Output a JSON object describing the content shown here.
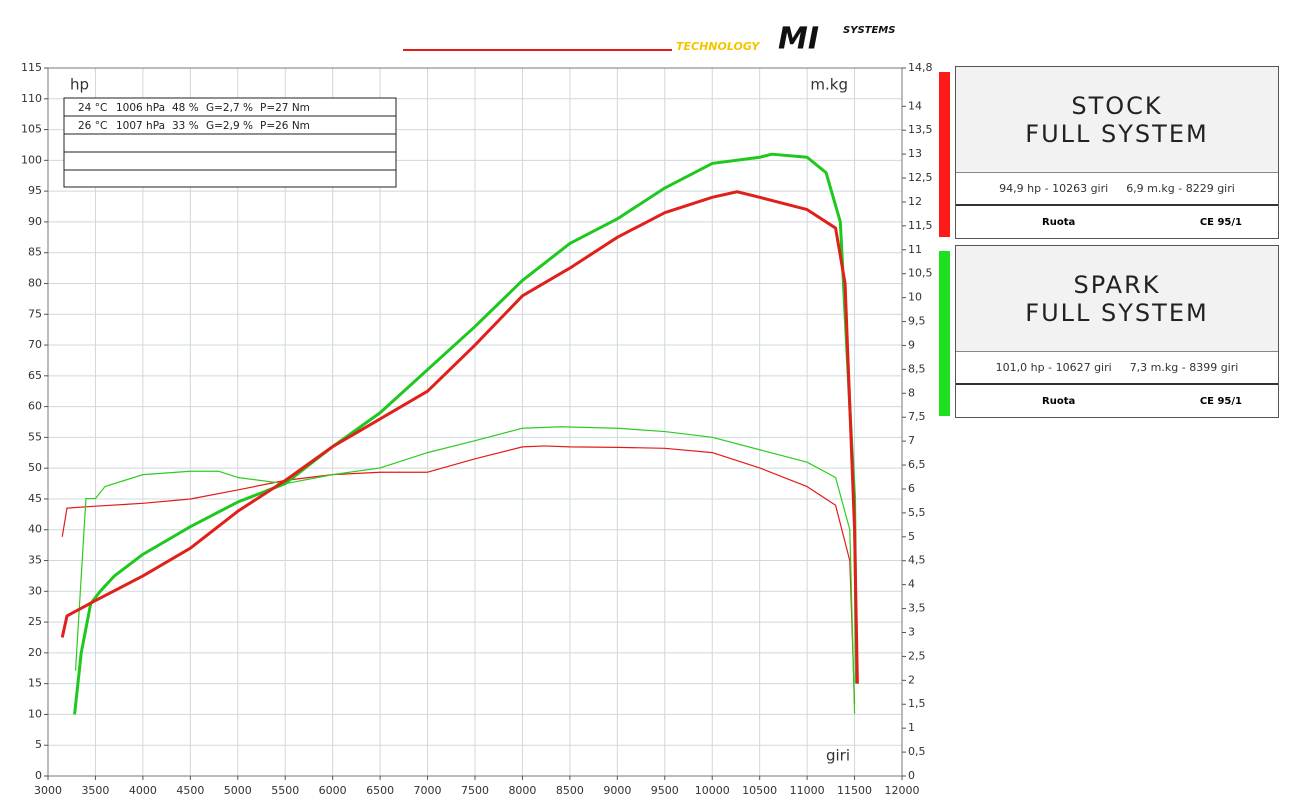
{
  "header": {
    "logo": [
      "TECHNOLOGY",
      "MI",
      "SYSTEMS"
    ]
  },
  "info_table": [
    [
      "24 °C",
      "1006 hPa",
      "48 %",
      "G=2,7 %",
      "P=27 Nm"
    ],
    [
      "26 °C",
      "1007 hPa",
      "33 %",
      "G=2,9 %",
      "P=26 Nm"
    ]
  ],
  "chart_data": {
    "type": "line",
    "ylabel": "hp",
    "y2label": "m.kg",
    "xlabel": "giri",
    "grid": true,
    "xlim": [
      3000,
      12000
    ],
    "xticks": [
      3000,
      3500,
      4000,
      4500,
      5000,
      5500,
      6000,
      6500,
      7000,
      7500,
      8000,
      8500,
      9000,
      9500,
      10000,
      10500,
      11000,
      11500,
      12000
    ],
    "ylim": [
      0,
      115
    ],
    "yticks": [
      0,
      5,
      10,
      15,
      20,
      25,
      30,
      35,
      40,
      45,
      50,
      55,
      60,
      65,
      70,
      75,
      80,
      85,
      90,
      95,
      100,
      105,
      110,
      115
    ],
    "y2lim": [
      0,
      14.8
    ],
    "y2ticks": [
      0,
      {
        "value": 0.5,
        "label": "0,5"
      },
      1,
      {
        "value": 1.5,
        "label": "1,5"
      },
      2,
      {
        "value": 2.5,
        "label": "2,5"
      },
      3,
      {
        "value": 3.5,
        "label": "3,5"
      },
      4,
      {
        "value": 4.5,
        "label": "4,5"
      },
      5,
      {
        "value": 5.5,
        "label": "5,5"
      },
      6,
      {
        "value": 6.5,
        "label": "6,5"
      },
      7,
      {
        "value": 7.5,
        "label": "7,5"
      },
      8,
      {
        "value": 8.5,
        "label": "8,5"
      },
      9,
      {
        "value": 9.5,
        "label": "9,5"
      },
      10,
      {
        "value": 10.5,
        "label": "10,5"
      },
      11,
      {
        "value": 11.5,
        "label": "11,5"
      },
      12,
      {
        "value": 12.5,
        "label": "12,5"
      },
      13,
      {
        "value": 13.5,
        "label": "13,5"
      },
      14,
      {
        "value": 14.8,
        "label": "14,8"
      }
    ],
    "series": [
      {
        "color": "#e31b1b",
        "axis": "y2",
        "width": 1.2,
        "x": [
          3150,
          3200,
          3500,
          4000,
          4500,
          5000,
          5500,
          6000,
          6500,
          7000,
          7500,
          8000,
          8229,
          8500,
          9000,
          9500,
          10000,
          10500,
          11000,
          11300,
          11450,
          11500
        ],
        "values": [
          5.0,
          5.6,
          5.64,
          5.7,
          5.79,
          5.98,
          6.18,
          6.3,
          6.35,
          6.35,
          6.63,
          6.88,
          6.9,
          6.88,
          6.87,
          6.85,
          6.76,
          6.44,
          6.05,
          5.66,
          4.5,
          1.5
        ]
      },
      {
        "color": "#2ecc1f",
        "axis": "y2",
        "width": 1.2,
        "x": [
          3290,
          3400,
          3500,
          3600,
          4000,
          4500,
          4800,
          5000,
          5500,
          6000,
          6500,
          7000,
          7500,
          8000,
          8399,
          9000,
          9500,
          10000,
          10500,
          11000,
          11300,
          11450,
          11500
        ],
        "values": [
          2.2,
          5.8,
          5.8,
          6.05,
          6.3,
          6.37,
          6.37,
          6.24,
          6.11,
          6.3,
          6.44,
          6.76,
          7.01,
          7.27,
          7.3,
          7.27,
          7.2,
          7.08,
          6.82,
          6.56,
          6.24,
          5.15,
          1.3
        ]
      },
      {
        "color": "#1ec81e",
        "width": 3,
        "x": [
          3280,
          3350,
          3450,
          3550,
          3700,
          4000,
          4500,
          5000,
          5500,
          6000,
          6500,
          7000,
          7500,
          8000,
          8500,
          9000,
          9500,
          10000,
          10500,
          10627,
          11000,
          11200,
          11350,
          11450,
          11500,
          11520
        ],
        "values": [
          10,
          20,
          28,
          30,
          32.5,
          36,
          40.5,
          44.5,
          47.5,
          53.5,
          59,
          66,
          73,
          80.5,
          86.5,
          90.5,
          95.5,
          99.5,
          100.5,
          101,
          100.5,
          98,
          90,
          60,
          45,
          15
        ]
      },
      {
        "color": "#e0201a",
        "width": 3,
        "x": [
          3150,
          3200,
          3500,
          4000,
          4500,
          5000,
          5500,
          6000,
          6500,
          7000,
          7500,
          8000,
          8500,
          9000,
          9500,
          10000,
          10263,
          10500,
          11000,
          11300,
          11400,
          11500,
          11530
        ],
        "values": [
          22.5,
          26,
          28.5,
          32.5,
          37,
          43,
          48,
          53.5,
          58,
          62.5,
          70,
          78,
          82.5,
          87.5,
          91.5,
          94,
          94.9,
          94,
          92,
          89,
          80,
          40,
          15
        ]
      }
    ]
  },
  "panels": [
    {
      "title": [
        "STOCK",
        "FULL SYSTEM"
      ],
      "stats": [
        "94,9 hp - 10263 giri",
        "6,9 m.kg - 8229 giri"
      ],
      "footer": [
        "Ruota",
        "CE 95/1"
      ],
      "color": "#ff1a1a"
    },
    {
      "title": [
        "SPARK",
        "FULL SYSTEM"
      ],
      "stats": [
        "101,0 hp - 10627 giri",
        "7,3 m.kg - 8399 giri"
      ],
      "footer": [
        "Ruota",
        "CE 95/1"
      ],
      "color": "#1fe01f"
    }
  ]
}
